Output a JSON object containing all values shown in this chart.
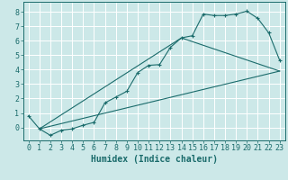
{
  "xlabel": "Humidex (Indice chaleur)",
  "bg_color": "#cce8e8",
  "line_color": "#1a6b6b",
  "grid_color": "#ffffff",
  "xlim": [
    -0.5,
    23.5
  ],
  "ylim": [
    -0.9,
    8.7
  ],
  "xticks": [
    0,
    1,
    2,
    3,
    4,
    5,
    6,
    7,
    8,
    9,
    10,
    11,
    12,
    13,
    14,
    15,
    16,
    17,
    18,
    19,
    20,
    21,
    22,
    23
  ],
  "yticks": [
    0,
    1,
    2,
    3,
    4,
    5,
    6,
    7,
    8
  ],
  "curve1_x": [
    0,
    1,
    2,
    3,
    4,
    5,
    6,
    7,
    8,
    9,
    10,
    11,
    12,
    13,
    14,
    15,
    16,
    17,
    18,
    19,
    20,
    21,
    22,
    23
  ],
  "curve1_y": [
    0.8,
    -0.1,
    -0.55,
    -0.2,
    -0.1,
    0.15,
    0.35,
    1.7,
    2.1,
    2.5,
    3.8,
    4.3,
    4.35,
    5.55,
    6.2,
    6.35,
    7.85,
    7.75,
    7.75,
    7.85,
    8.05,
    7.55,
    6.55,
    4.65
  ],
  "line2_x": [
    1,
    23
  ],
  "line2_y": [
    -0.1,
    3.9
  ],
  "line3_x": [
    1,
    14,
    23
  ],
  "line3_y": [
    -0.1,
    6.2,
    3.9
  ],
  "xlabel_fontsize": 7,
  "tick_fontsize": 6
}
